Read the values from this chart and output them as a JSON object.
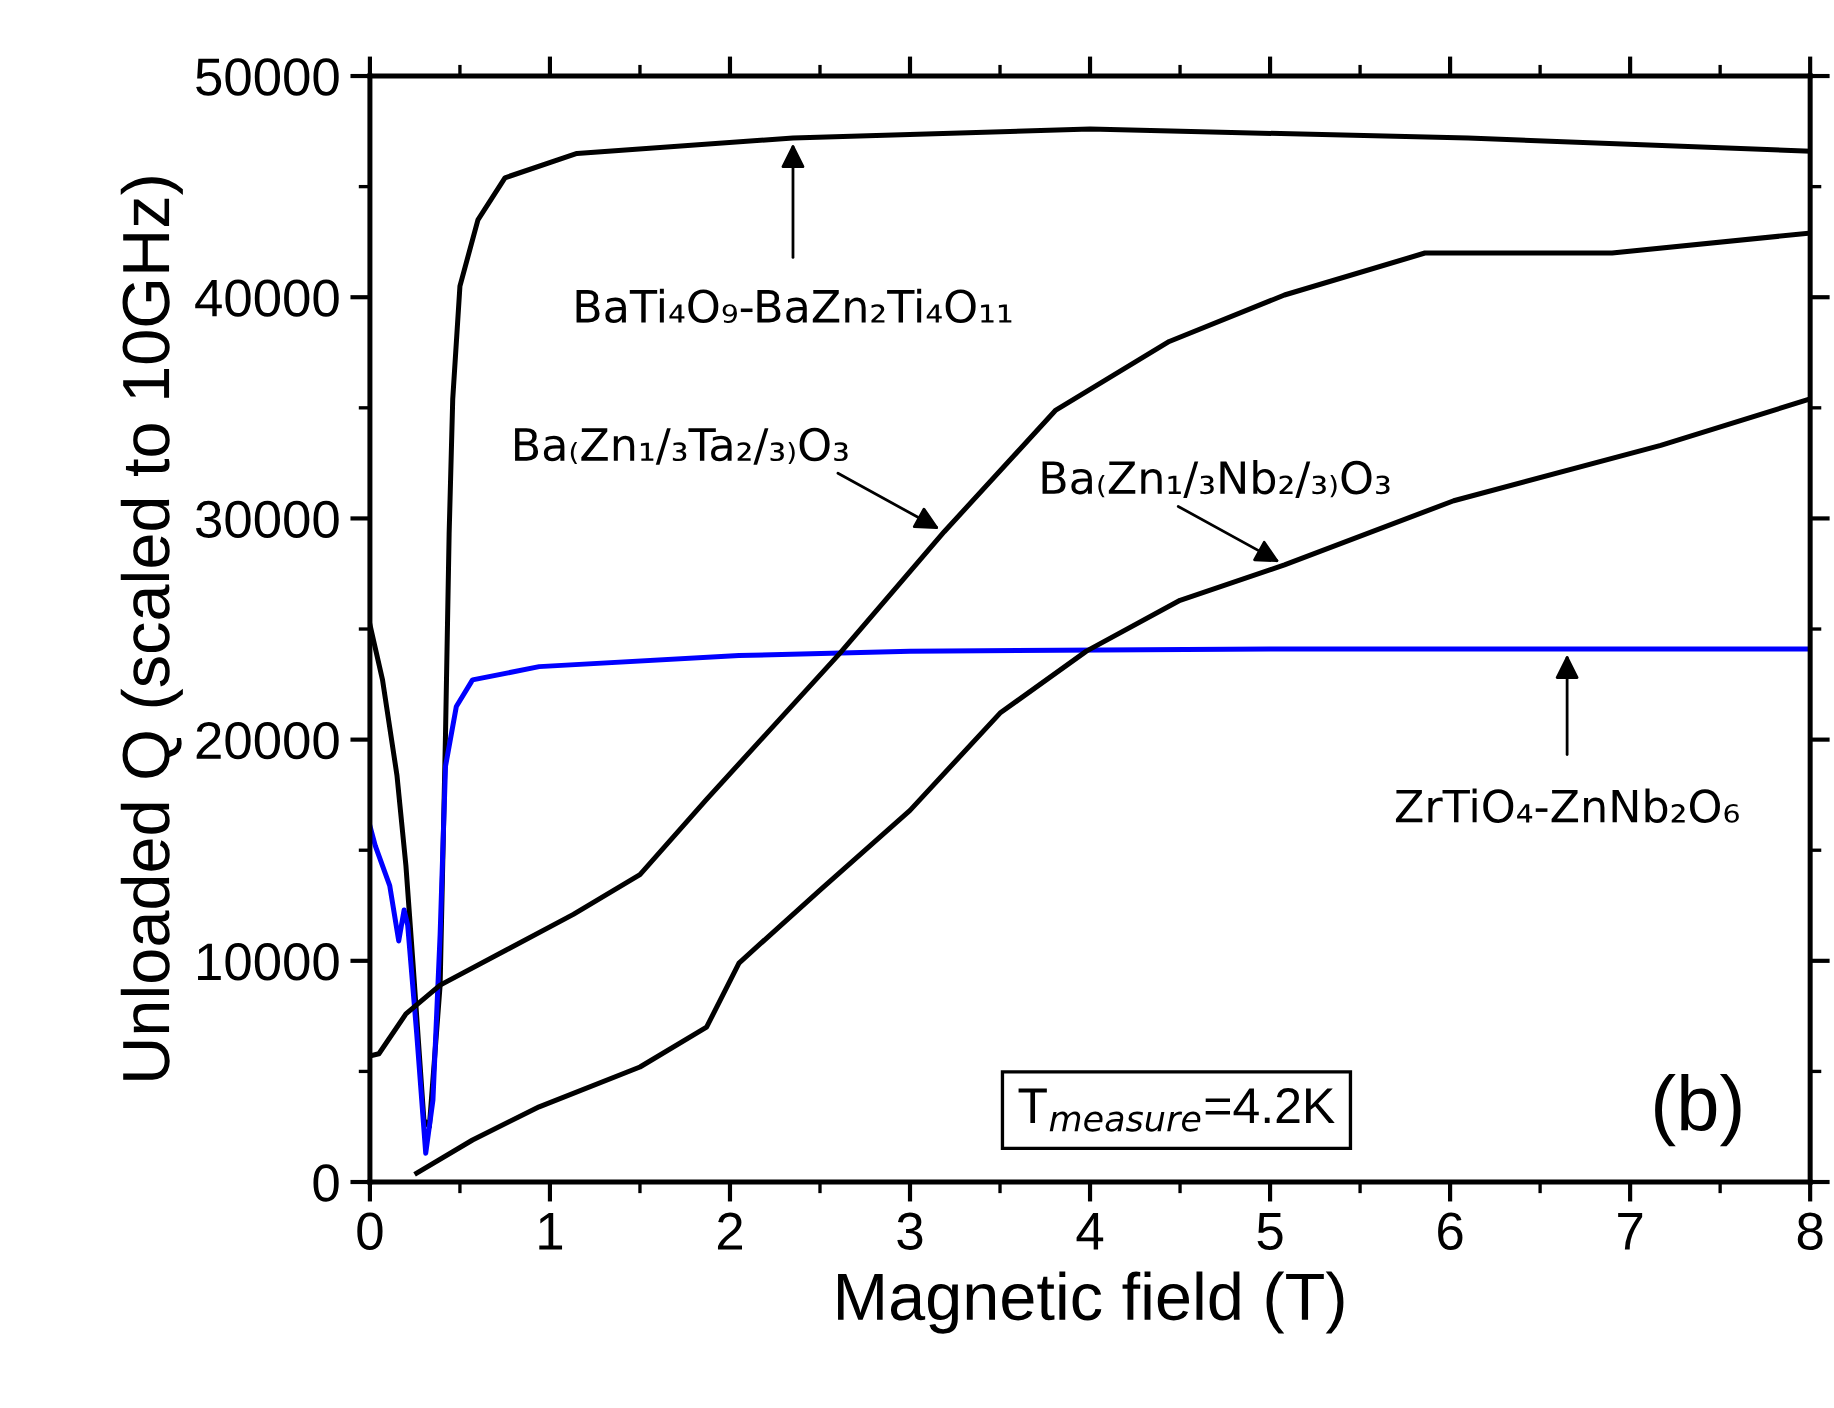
{
  "chart_data": {
    "type": "line",
    "xlabel": "Magnetic field (T)",
    "ylabel": "Unloaded Q (scaled to 10GHz)",
    "xlim": [
      0,
      8
    ],
    "ylim": [
      0,
      50000
    ],
    "xticks": [
      0,
      {
        "value": 0.5,
        "label": null
      },
      1,
      {
        "value": 1.5,
        "label": null
      },
      2,
      {
        "value": 2.5,
        "label": null
      },
      3,
      {
        "value": 3.5,
        "label": null
      },
      4,
      {
        "value": 4.5,
        "label": null
      },
      5,
      {
        "value": 5.5,
        "label": null
      },
      6,
      {
        "value": 6.5,
        "label": null
      },
      7,
      {
        "value": 7.5,
        "label": null
      },
      8
    ],
    "yticks": [
      0,
      {
        "value": 5000,
        "label": null
      },
      10000,
      {
        "value": 15000,
        "label": null
      },
      20000,
      {
        "value": 25000,
        "label": null
      },
      30000,
      {
        "value": 35000,
        "label": null
      },
      40000,
      {
        "value": 45000,
        "label": null
      },
      50000
    ],
    "grid": false,
    "legend": false,
    "marker": "none",
    "line_style": "solid",
    "series": [
      {
        "color": "#000000",
        "x": [
          0,
          0.07,
          0.15,
          0.2,
          0.24,
          0.3,
          0.33,
          0.39,
          0.42,
          0.44,
          0.46,
          0.5,
          0.6,
          0.75,
          1.15,
          2.35,
          4.0,
          6.1,
          8.0
        ],
        "values": [
          25200,
          22700,
          18400,
          14300,
          9800,
          2800,
          2500,
          8900,
          20300,
          29300,
          35400,
          40500,
          43500,
          45400,
          46500,
          47200,
          47600,
          47200,
          46600
        ]
      },
      {
        "color": "#0000ff",
        "x": [
          0,
          0.03,
          0.11,
          0.16,
          0.19,
          0.21,
          0.26,
          0.31,
          0.35,
          0.39,
          0.42,
          0.48,
          0.57,
          0.94,
          2.05,
          3.0,
          5.0,
          8.0
        ],
        "values": [
          16100,
          15200,
          13400,
          10900,
          12300,
          11600,
          6700,
          1300,
          3700,
          11200,
          18800,
          21500,
          22700,
          23300,
          23800,
          24000,
          24100,
          24100
        ]
      },
      {
        "color": "#000000",
        "x": [
          0,
          0.05,
          0.2,
          0.39,
          0.76,
          1.13,
          1.5,
          1.87,
          2.61,
          3.19,
          3.81,
          4.44,
          5.08,
          5.86,
          6.9,
          8.0
        ],
        "values": [
          5700,
          5800,
          7600,
          8900,
          10500,
          12100,
          13900,
          17300,
          23900,
          29400,
          34900,
          38000,
          40100,
          42000,
          42000,
          42900
        ]
      },
      {
        "color": "#000000",
        "x": [
          0.26,
          0.57,
          0.94,
          1.5,
          1.87,
          2.05,
          2.5,
          3.0,
          3.5,
          3.98,
          4.5,
          5.08,
          6.02,
          7.17,
          8.0
        ],
        "values": [
          400,
          1900,
          3400,
          5200,
          7000,
          9900,
          13200,
          16800,
          21200,
          24000,
          26300,
          27900,
          30800,
          33300,
          35400
        ]
      }
    ],
    "annotations": [
      {
        "text": "BaTi₄O₉-BaZn₂Ti₄O₁₁",
        "x": 2.35,
        "y": 47200
      },
      {
        "text": "Ba₍Zn₁/₃Ta₂/₃₎O₃",
        "x": 3.19,
        "y": 29400
      },
      {
        "text": "Ba₍Zn₁/₃Nb₂/₃₎O₃",
        "x": 5.08,
        "y": 27900
      },
      {
        "text": "ZrTiO₄-ZnNb₂O₆",
        "x": 6.65,
        "y": 24100
      },
      "T$_{measure}$=4.2K",
      "(b)"
    ]
  }
}
